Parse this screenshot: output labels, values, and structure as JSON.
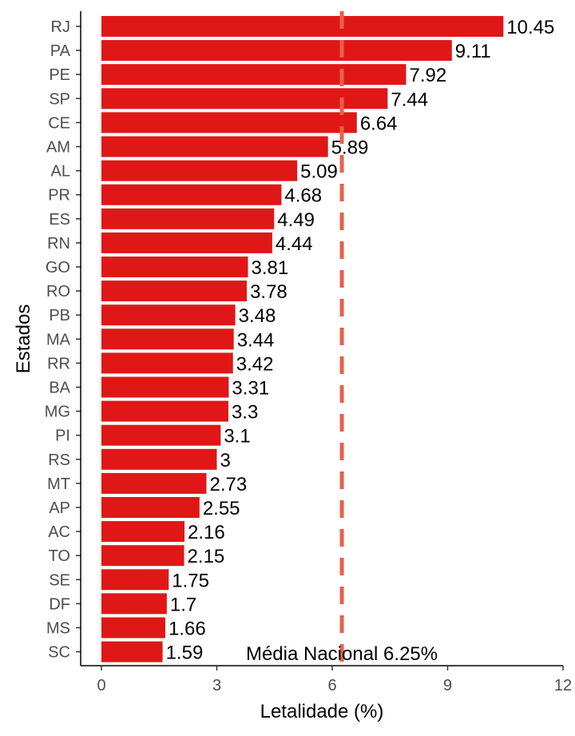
{
  "chart_data": {
    "type": "bar",
    "orientation": "horizontal",
    "xlabel": "Letalidade (%)",
    "ylabel": "Estados",
    "xlim": [
      0,
      12
    ],
    "xticks": [
      0,
      3,
      6,
      9,
      12
    ],
    "grid": false,
    "bar_color": "#E01717",
    "reference_line": {
      "value": 6.25,
      "color": "#E8604A",
      "style": "dashed",
      "label": "Média Nacional 6.25%"
    },
    "categories": [
      "RJ",
      "PA",
      "PE",
      "SP",
      "CE",
      "AM",
      "AL",
      "PR",
      "ES",
      "RN",
      "GO",
      "RO",
      "PB",
      "MA",
      "RR",
      "BA",
      "MG",
      "PI",
      "RS",
      "MT",
      "AP",
      "AC",
      "TO",
      "SE",
      "DF",
      "MS",
      "SC"
    ],
    "values": [
      10.45,
      9.11,
      7.92,
      7.44,
      6.64,
      5.89,
      5.09,
      4.68,
      4.49,
      4.44,
      3.81,
      3.78,
      3.48,
      3.44,
      3.42,
      3.31,
      3.3,
      3.1,
      3,
      2.73,
      2.55,
      2.16,
      2.15,
      1.75,
      1.7,
      1.66,
      1.59
    ],
    "data_labels": [
      "10.45",
      "9.11",
      "7.92",
      "7.44",
      "6.64",
      "5.89",
      "5.09",
      "4.68",
      "4.49",
      "4.44",
      "3.81",
      "3.78",
      "3.48",
      "3.44",
      "3.42",
      "3.31",
      "3.3",
      "3.1",
      "3",
      "2.73",
      "2.55",
      "2.16",
      "2.15",
      "1.75",
      "1.7",
      "1.66",
      "1.59"
    ]
  }
}
